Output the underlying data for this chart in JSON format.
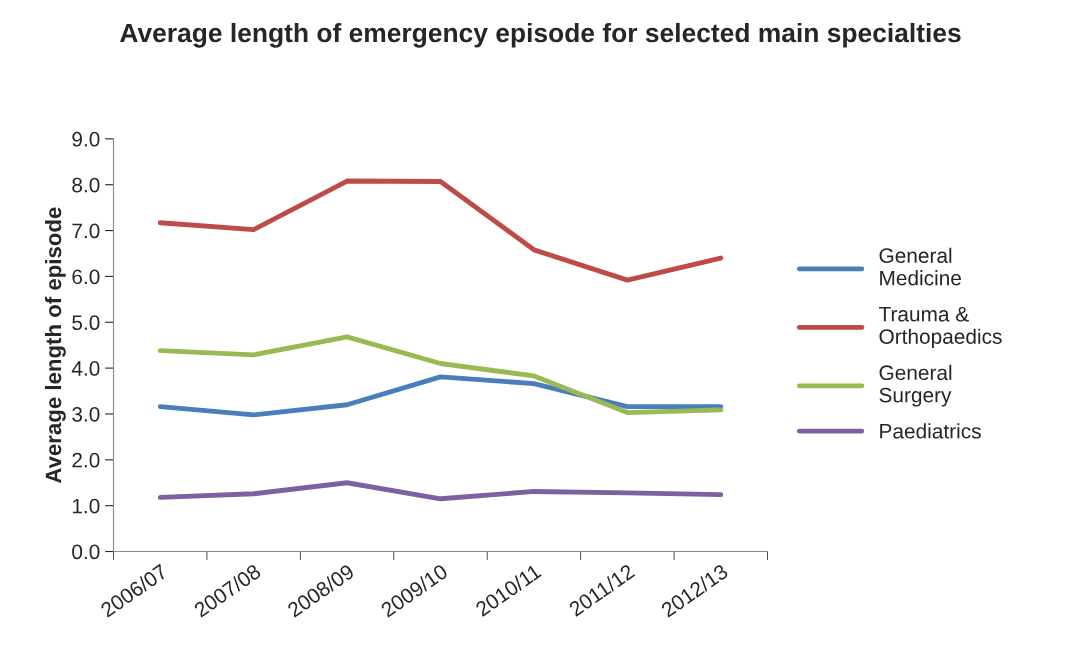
{
  "chart_data": {
    "type": "line",
    "title": "Average length of emergency episode for selected main specialties",
    "ylabel": "Average length of episode",
    "categories": [
      "2006/07",
      "2007/08",
      "2008/09",
      "2009/10",
      "2010/11",
      "2011/12",
      "2012/13"
    ],
    "series": [
      {
        "name": "General Medicine",
        "color": "#4a7ebb",
        "values": [
          3.16,
          2.98,
          3.2,
          3.81,
          3.66,
          3.16,
          3.16
        ]
      },
      {
        "name": "Trauma & Orthopaedics",
        "color": "#be4b48",
        "values": [
          7.17,
          7.02,
          8.08,
          8.07,
          6.58,
          5.92,
          6.4
        ]
      },
      {
        "name": "General Surgery",
        "color": "#98b954",
        "values": [
          4.38,
          4.29,
          4.68,
          4.1,
          3.83,
          3.03,
          3.09
        ]
      },
      {
        "name": "Paediatrics",
        "color": "#7d60a0",
        "values": [
          1.18,
          1.26,
          1.5,
          1.15,
          1.31,
          1.28,
          1.24
        ]
      }
    ],
    "ylim": [
      0,
      9
    ],
    "yticks": [
      {
        "value": 0,
        "label": "0.0"
      },
      {
        "value": 1,
        "label": "1.0"
      },
      {
        "value": 2,
        "label": "2.0"
      },
      {
        "value": 3,
        "label": "3.0"
      },
      {
        "value": 4,
        "label": "4.0"
      },
      {
        "value": 5,
        "label": "5.0"
      },
      {
        "value": 6,
        "label": "6.0"
      },
      {
        "value": 7,
        "label": "7.0"
      },
      {
        "value": 8,
        "label": "8.0"
      },
      {
        "value": 9,
        "label": "9.0"
      }
    ],
    "grid": false,
    "legend": "right",
    "marker": "none",
    "line_style": "solid"
  }
}
